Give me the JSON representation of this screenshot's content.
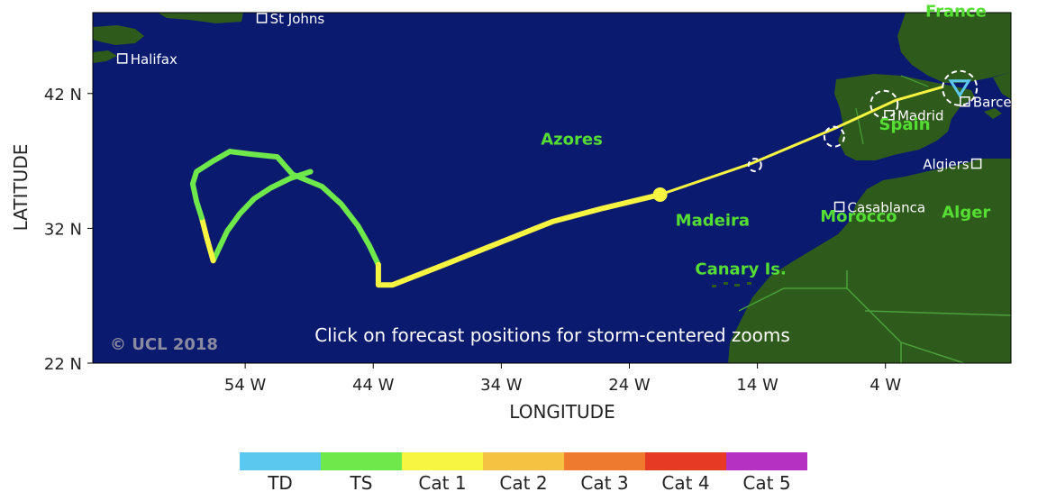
{
  "map": {
    "y_axis_title": "LATITUDE",
    "x_axis_title": "LONGITUDE",
    "lat_ticks": [
      {
        "label": "42 N",
        "lat": 42
      },
      {
        "label": "32 N",
        "lat": 32
      },
      {
        "label": "22 N",
        "lat": 22
      }
    ],
    "lon_ticks": [
      {
        "label": "54 W",
        "lon": -54
      },
      {
        "label": "44 W",
        "lon": -44
      },
      {
        "label": "34 W",
        "lon": -34
      },
      {
        "label": "24 W",
        "lon": -24
      },
      {
        "label": "14 W",
        "lon": -14
      },
      {
        "label": "4 W",
        "lon": -4
      }
    ],
    "copyright": "© UCL 2018",
    "instruction": "Click on forecast positions for storm-centered zooms",
    "colors": {
      "ocean": "#0a1a6e",
      "land": "#2e5a1c",
      "region_label": "#55dd33",
      "city_label": "#ffffff"
    },
    "cities": [
      {
        "name": "St Johns",
        "lat": 47.6,
        "lon": -52.7
      },
      {
        "name": "Halifax",
        "lat": 44.6,
        "lon": -63.6
      },
      {
        "name": "Barcelona",
        "lat": 41.4,
        "lon": 2.2
      },
      {
        "name": "Madrid",
        "lat": 40.4,
        "lon": -3.7
      },
      {
        "name": "Algiers",
        "lat": 36.8,
        "lon": 3.1
      },
      {
        "name": "Casablanca",
        "lat": 33.6,
        "lon": -7.6
      }
    ],
    "region_labels": [
      {
        "name": "France",
        "lat": 47.7,
        "lon": 1.5
      },
      {
        "name": "Azores",
        "lat": 38.2,
        "lon": -28.5
      },
      {
        "name": "Spain",
        "lat": 39.3,
        "lon": -2.5
      },
      {
        "name": "Madeira",
        "lat": 32.2,
        "lon": -17.5
      },
      {
        "name": "Canary Is.",
        "lat": 28.6,
        "lon": -15.3
      },
      {
        "name": "Morocco",
        "lat": 32.5,
        "lon": -6.1
      },
      {
        "name": "Alger",
        "lat": 32.8,
        "lon": 2.3
      }
    ]
  },
  "track": {
    "ts_points": [
      [
        -48.9,
        36.2
      ],
      [
        -50.5,
        35.7
      ],
      [
        -52.0,
        35.0
      ],
      [
        -53.3,
        34.2
      ],
      [
        -54.4,
        33.1
      ],
      [
        -55.4,
        31.8
      ],
      [
        -56.0,
        30.6
      ],
      [
        -56.5,
        29.6
      ]
    ],
    "cat1_points": [
      [
        -56.5,
        29.6
      ],
      [
        -57.0,
        31.3
      ],
      [
        -57.4,
        32.8
      ]
    ],
    "ts_points_2": [
      [
        -57.4,
        32.8
      ],
      [
        -57.8,
        34.0
      ],
      [
        -58.1,
        35.3
      ],
      [
        -57.8,
        36.2
      ],
      [
        -56.5,
        37.0
      ],
      [
        -55.2,
        37.7
      ],
      [
        -53.5,
        37.5
      ],
      [
        -51.5,
        37.3
      ],
      [
        -50.3,
        36.0
      ],
      [
        -48.0,
        35.1
      ],
      [
        -46.5,
        33.8
      ],
      [
        -45.2,
        32.2
      ],
      [
        -44.3,
        30.7
      ],
      [
        -43.6,
        29.3
      ]
    ],
    "cat1_points_2": [
      [
        -43.6,
        29.3
      ],
      [
        -43.6,
        27.8
      ],
      [
        -42.5,
        27.8
      ],
      [
        -39.0,
        29.1
      ],
      [
        -34.5,
        30.8
      ],
      [
        -30.0,
        32.5
      ],
      [
        -26.0,
        33.5
      ],
      [
        -21.6,
        34.5
      ]
    ],
    "forecast_points": [
      [
        -21.6,
        34.5
      ],
      [
        -14.5,
        36.8
      ],
      [
        -8.0,
        39.4
      ],
      [
        -3.2,
        41.5
      ],
      [
        0.5,
        42.5
      ]
    ],
    "current_position": {
      "lat": 34.5,
      "lon": -21.6
    },
    "forecast_marks": [
      {
        "lat": 36.7,
        "lon": -14.2
      },
      {
        "lat": 38.8,
        "lon": -8.0
      },
      {
        "lat": 41.2,
        "lon": -4.1
      },
      {
        "lat": 42.4,
        "lon": 1.8
      }
    ]
  },
  "legend": [
    {
      "label": "TD",
      "color": "#5bc8f0"
    },
    {
      "label": "TS",
      "color": "#6ee84a"
    },
    {
      "label": "Cat 1",
      "color": "#f7f542"
    },
    {
      "label": "Cat 2",
      "color": "#f5c242"
    },
    {
      "label": "Cat 3",
      "color": "#ee7a30"
    },
    {
      "label": "Cat 4",
      "color": "#e63a24"
    },
    {
      "label": "Cat 5",
      "color": "#b532c0"
    }
  ]
}
